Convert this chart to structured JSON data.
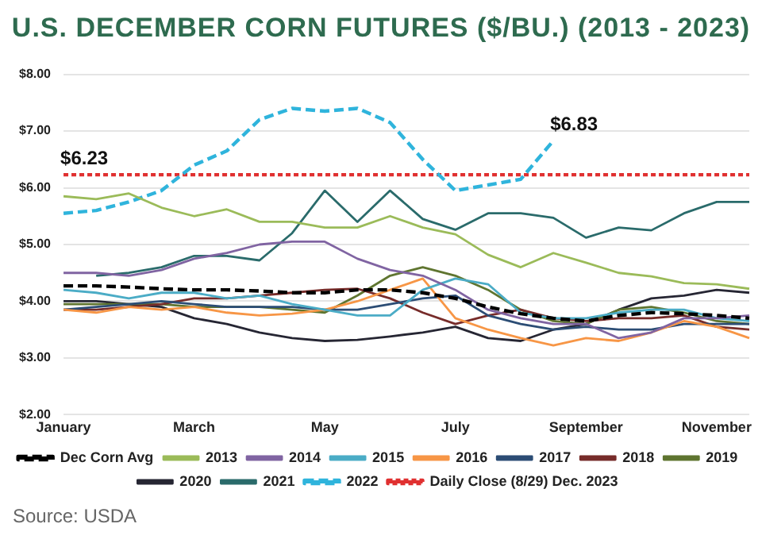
{
  "chart_data": {
    "type": "line",
    "title": "U.S. DECEMBER CORN FUTURES ($/BU.) (2013 - 2023)",
    "categories": [
      "January",
      null,
      null,
      null,
      "March",
      null,
      null,
      null,
      "May",
      null,
      null,
      null,
      "July",
      null,
      null,
      null,
      "September",
      null,
      null,
      null,
      "November",
      null
    ],
    "ylim": [
      2,
      8
    ],
    "yticks": [
      {
        "value": 2,
        "label": "$2.00"
      },
      {
        "value": 3,
        "label": "$3.00"
      },
      {
        "value": 4,
        "label": "$4.00"
      },
      {
        "value": 5,
        "label": "$5.00"
      },
      {
        "value": 6,
        "label": "$6.00"
      },
      {
        "value": 7,
        "label": "$7.00"
      },
      {
        "value": 8,
        "label": "$8.00"
      }
    ],
    "grid": "y",
    "legend": "bottom",
    "marker": "none",
    "series": [
      {
        "name": "Dec Corn Avg",
        "color": "#000000",
        "line_style": "dashed",
        "values": [
          4.27,
          4.27,
          4.25,
          4.22,
          4.2,
          4.2,
          4.18,
          4.15,
          4.15,
          4.2,
          4.2,
          4.15,
          4.05,
          3.9,
          3.78,
          3.7,
          3.65,
          3.75,
          3.8,
          3.78,
          3.75,
          3.7
        ]
      },
      {
        "name": "2013",
        "color": "#9bbb59",
        "values": [
          5.85,
          5.8,
          5.9,
          5.65,
          5.5,
          5.62,
          5.4,
          5.4,
          5.3,
          5.3,
          5.5,
          5.3,
          5.18,
          4.82,
          4.6,
          4.85,
          4.68,
          4.5,
          4.44,
          4.32,
          4.3,
          4.22
        ]
      },
      {
        "name": "2014",
        "color": "#8064a2",
        "values": [
          4.5,
          4.5,
          4.45,
          4.55,
          4.75,
          4.85,
          5.0,
          5.05,
          5.05,
          4.75,
          4.55,
          4.45,
          4.2,
          3.85,
          3.7,
          3.6,
          3.6,
          3.35,
          3.45,
          3.7,
          3.7,
          3.75
        ]
      },
      {
        "name": "2015",
        "color": "#4bacc6",
        "values": [
          4.2,
          4.15,
          4.05,
          4.15,
          4.15,
          4.05,
          4.1,
          3.95,
          3.85,
          3.75,
          3.75,
          4.2,
          4.4,
          4.3,
          3.8,
          3.7,
          3.7,
          3.8,
          3.85,
          3.85,
          3.7,
          3.65
        ]
      },
      {
        "name": "2016",
        "color": "#f79646",
        "values": [
          3.85,
          3.8,
          3.9,
          3.85,
          3.9,
          3.8,
          3.75,
          3.78,
          3.85,
          4.0,
          4.2,
          4.4,
          3.7,
          3.5,
          3.35,
          3.22,
          3.35,
          3.3,
          3.45,
          3.65,
          3.55,
          3.35
        ]
      },
      {
        "name": "2017",
        "color": "#2c4d75",
        "values": [
          3.85,
          3.9,
          3.95,
          4.0,
          3.95,
          3.9,
          3.9,
          3.9,
          3.85,
          3.85,
          3.95,
          4.05,
          4.1,
          3.75,
          3.6,
          3.5,
          3.55,
          3.5,
          3.5,
          3.6,
          3.6,
          3.6
        ]
      },
      {
        "name": "2018",
        "color": "#772c2a",
        "values": [
          3.85,
          3.85,
          3.9,
          3.95,
          4.05,
          4.05,
          4.1,
          4.15,
          4.2,
          4.22,
          4.05,
          3.8,
          3.6,
          3.75,
          3.85,
          3.7,
          3.65,
          3.7,
          3.7,
          3.75,
          3.55,
          3.5
        ]
      },
      {
        "name": "2019",
        "color": "#5f7530",
        "values": [
          3.95,
          3.95,
          3.95,
          3.95,
          3.9,
          3.9,
          3.9,
          3.85,
          3.8,
          4.1,
          4.45,
          4.6,
          4.45,
          4.2,
          3.85,
          3.65,
          3.6,
          3.85,
          3.9,
          3.8,
          3.65,
          3.6
        ]
      },
      {
        "name": "2020",
        "color": "#262633",
        "values": [
          4.0,
          4.0,
          3.95,
          3.9,
          3.7,
          3.6,
          3.45,
          3.35,
          3.3,
          3.32,
          3.38,
          3.45,
          3.55,
          3.35,
          3.3,
          3.5,
          3.6,
          3.85,
          4.05,
          4.1,
          4.2,
          4.15
        ]
      },
      {
        "name": "2021",
        "color": "#2a6b6b",
        "values": [
          null,
          4.45,
          4.5,
          4.6,
          4.8,
          4.8,
          4.72,
          5.2,
          5.95,
          5.4,
          5.95,
          5.45,
          5.26,
          5.55,
          5.55,
          5.47,
          5.12,
          5.3,
          5.25,
          5.55,
          5.75,
          5.75
        ]
      },
      {
        "name": "2022",
        "color": "#2fb4dc",
        "line_style": "dashed",
        "values": [
          5.55,
          5.6,
          5.75,
          5.95,
          6.4,
          6.65,
          7.2,
          7.4,
          7.35,
          7.4,
          7.15,
          6.5,
          5.95,
          6.05,
          6.15,
          6.83,
          null,
          null,
          null,
          null,
          null,
          null
        ],
        "value_labels": [
          null,
          null,
          null,
          null,
          null,
          null,
          null,
          null,
          null,
          null,
          null,
          null,
          null,
          null,
          null,
          "$6.83",
          null,
          null,
          null,
          null,
          null,
          null
        ]
      },
      {
        "name": "Daily Close (8/29) Dec. 2023",
        "color": "#e03030",
        "line_style": "dotted",
        "values": [
          6.23,
          6.23,
          6.23,
          6.23,
          6.23,
          6.23,
          6.23,
          6.23,
          6.23,
          6.23,
          6.23,
          6.23,
          6.23,
          6.23,
          6.23,
          6.23,
          6.23,
          6.23,
          6.23,
          6.23,
          6.23,
          6.23
        ],
        "value_labels": [
          "$6.23",
          null,
          null,
          null,
          null,
          null,
          null,
          null,
          null,
          null,
          null,
          null,
          null,
          null,
          null,
          null,
          null,
          null,
          null,
          null,
          null,
          null
        ]
      }
    ],
    "annotations": [
      "Source: USDA"
    ]
  }
}
